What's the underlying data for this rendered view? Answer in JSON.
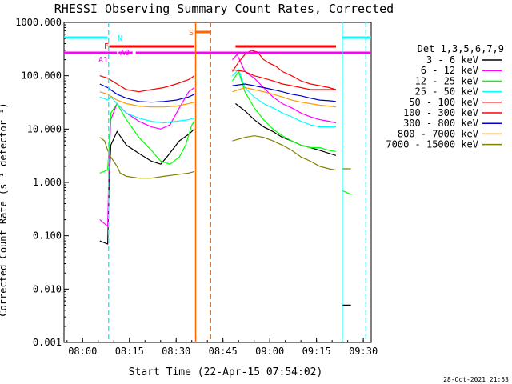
{
  "chart_data": {
    "type": "line",
    "title": "RHESSI Observing Summary Count Rates, Corrected",
    "xlabel": "Start Time (22-Apr-15 07:54:02)",
    "ylabel": "Corrected Count Rate (s⁻¹ detector⁻¹)",
    "yscale": "log",
    "ylim": [
      0.001,
      1000
    ],
    "xlim_minutes": [
      0,
      98.5
    ],
    "x_unit": "minutes after 07:54:02",
    "yticks": [
      "1000.000",
      "100.000",
      "10.000",
      "1.000",
      "0.100",
      "0.010",
      "0.001"
    ],
    "xticks": [
      {
        "label": "08:00",
        "m": 5.97
      },
      {
        "label": "08:15",
        "m": 20.97
      },
      {
        "label": "08:30",
        "m": 35.97
      },
      {
        "label": "08:45",
        "m": 50.97
      },
      {
        "label": "09:00",
        "m": 65.97
      },
      {
        "label": "09:15",
        "m": 80.97
      },
      {
        "label": "09:30",
        "m": 95.97
      }
    ],
    "legend_title": "Det 1,3,5,6,7,9",
    "legend_position": "right",
    "footer": "28-Oct-2021 21:53",
    "gaps_minutes": [
      [
        42,
        53.5
      ],
      [
        87.5,
        89.2
      ]
    ],
    "series": [
      {
        "name": "3 - 6 keV",
        "color": "#000000",
        "points": [
          [
            11.5,
            0.08
          ],
          [
            14,
            0.07
          ],
          [
            14.5,
            1.0
          ],
          [
            15,
            5.0
          ],
          [
            17,
            9.0
          ],
          [
            20,
            5.0
          ],
          [
            24,
            3.5
          ],
          [
            28,
            2.5
          ],
          [
            31,
            2.2
          ],
          [
            33,
            3.0
          ],
          [
            37,
            6.0
          ],
          [
            40,
            8.0
          ],
          [
            41.8,
            10
          ],
          [
            55,
            30
          ],
          [
            58,
            22
          ],
          [
            61,
            15
          ],
          [
            64,
            11
          ],
          [
            67,
            9
          ],
          [
            70,
            7
          ],
          [
            73,
            6
          ],
          [
            76,
            5.0
          ],
          [
            79,
            4.5
          ],
          [
            82,
            4.0
          ],
          [
            85,
            3.5
          ],
          [
            87.2,
            3.2
          ],
          [
            89.2,
            0.005
          ],
          [
            92,
            0.005
          ]
        ]
      },
      {
        "name": "6 - 12 keV",
        "color": "#ff00ff",
        "points": [
          [
            11.5,
            0.2
          ],
          [
            14,
            0.15
          ],
          [
            14.5,
            3.0
          ],
          [
            15,
            15
          ],
          [
            17,
            30
          ],
          [
            20,
            20
          ],
          [
            24,
            14
          ],
          [
            28,
            11
          ],
          [
            31,
            10
          ],
          [
            34,
            12
          ],
          [
            37,
            25
          ],
          [
            40,
            50
          ],
          [
            41.8,
            60
          ],
          [
            54,
            200
          ],
          [
            55.5,
            250
          ],
          [
            58,
            120
          ],
          [
            61,
            90
          ],
          [
            64,
            60
          ],
          [
            67,
            40
          ],
          [
            70,
            30
          ],
          [
            73,
            25
          ],
          [
            76,
            20
          ],
          [
            79,
            17
          ],
          [
            82,
            15
          ],
          [
            85,
            14
          ],
          [
            87.2,
            13
          ]
        ]
      },
      {
        "name": "12 - 25 keV",
        "color": "#00ff00",
        "points": [
          [
            11.5,
            1.5
          ],
          [
            14,
            1.7
          ],
          [
            14.5,
            5.0
          ],
          [
            15,
            20
          ],
          [
            17,
            30
          ],
          [
            20,
            15
          ],
          [
            24,
            7
          ],
          [
            28,
            4
          ],
          [
            31,
            2.5
          ],
          [
            34,
            2.2
          ],
          [
            37,
            3
          ],
          [
            39,
            5
          ],
          [
            41,
            12
          ],
          [
            41.8,
            14
          ],
          [
            54,
            80
          ],
          [
            56,
            120
          ],
          [
            58,
            50
          ],
          [
            61,
            25
          ],
          [
            64,
            15
          ],
          [
            67,
            10
          ],
          [
            70,
            7.5
          ],
          [
            73,
            6
          ],
          [
            76,
            5
          ],
          [
            79,
            4.5
          ],
          [
            82,
            4.5
          ],
          [
            85,
            4
          ],
          [
            87.2,
            3.8
          ],
          [
            89.2,
            0.7
          ],
          [
            92,
            0.6
          ]
        ]
      },
      {
        "name": "25 - 50 keV",
        "color": "#00ffff",
        "points": [
          [
            11.5,
            40
          ],
          [
            14,
            35
          ],
          [
            15,
            40
          ],
          [
            17,
            30
          ],
          [
            20,
            20
          ],
          [
            24,
            16
          ],
          [
            28,
            14
          ],
          [
            32,
            13
          ],
          [
            36,
            14
          ],
          [
            40,
            15
          ],
          [
            41.8,
            16
          ],
          [
            54,
            100
          ],
          [
            56,
            130
          ],
          [
            58,
            60
          ],
          [
            61,
            40
          ],
          [
            64,
            30
          ],
          [
            67,
            25
          ],
          [
            70,
            20
          ],
          [
            73,
            17
          ],
          [
            76,
            14
          ],
          [
            79,
            12
          ],
          [
            82,
            11
          ],
          [
            85,
            11
          ],
          [
            87.2,
            11
          ]
        ]
      },
      {
        "name": "50 - 100 keV",
        "color": "#ff0000",
        "points": [
          [
            11.5,
            100
          ],
          [
            14,
            90
          ],
          [
            17,
            70
          ],
          [
            20,
            55
          ],
          [
            24,
            50
          ],
          [
            28,
            55
          ],
          [
            32,
            60
          ],
          [
            36,
            70
          ],
          [
            40,
            85
          ],
          [
            41.8,
            100
          ],
          [
            54,
            130
          ],
          [
            58,
            120
          ],
          [
            61,
            100
          ],
          [
            64,
            90
          ],
          [
            67,
            80
          ],
          [
            70,
            70
          ],
          [
            73,
            65
          ],
          [
            76,
            60
          ],
          [
            79,
            55
          ],
          [
            82,
            55
          ],
          [
            85,
            55
          ],
          [
            87.2,
            55
          ]
        ]
      },
      {
        "name": "100 - 300 keV",
        "color": "#ff0000",
        "points": [
          [
            54,
            120
          ],
          [
            56,
            180
          ],
          [
            58,
            250
          ],
          [
            60,
            300
          ],
          [
            62,
            280
          ],
          [
            64,
            200
          ],
          [
            66,
            170
          ],
          [
            68,
            150
          ],
          [
            70,
            120
          ],
          [
            73,
            100
          ],
          [
            76,
            80
          ],
          [
            79,
            70
          ],
          [
            82,
            65
          ],
          [
            85,
            60
          ],
          [
            87.2,
            55
          ]
        ]
      },
      {
        "name": "300 - 800 keV",
        "color": "#0000cc",
        "points": [
          [
            11.5,
            70
          ],
          [
            14,
            60
          ],
          [
            17,
            45
          ],
          [
            20,
            38
          ],
          [
            24,
            33
          ],
          [
            28,
            32
          ],
          [
            32,
            33
          ],
          [
            36,
            35
          ],
          [
            40,
            40
          ],
          [
            41.8,
            45
          ],
          [
            54,
            65
          ],
          [
            58,
            70
          ],
          [
            61,
            65
          ],
          [
            64,
            60
          ],
          [
            67,
            55
          ],
          [
            70,
            50
          ],
          [
            73,
            45
          ],
          [
            76,
            42
          ],
          [
            79,
            38
          ],
          [
            82,
            35
          ],
          [
            85,
            34
          ],
          [
            87.2,
            33
          ]
        ]
      },
      {
        "name": "800 - 7000 keV",
        "color": "#ff9900",
        "points": [
          [
            11.5,
            50
          ],
          [
            14,
            45
          ],
          [
            17,
            35
          ],
          [
            20,
            30
          ],
          [
            24,
            27
          ],
          [
            28,
            26
          ],
          [
            32,
            26
          ],
          [
            36,
            27
          ],
          [
            40,
            30
          ],
          [
            41.8,
            32
          ],
          [
            54,
            50
          ],
          [
            58,
            60
          ],
          [
            61,
            55
          ],
          [
            64,
            50
          ],
          [
            67,
            45
          ],
          [
            70,
            40
          ],
          [
            73,
            35
          ],
          [
            76,
            32
          ],
          [
            79,
            30
          ],
          [
            82,
            28
          ],
          [
            85,
            27
          ],
          [
            87.2,
            26
          ]
        ]
      },
      {
        "name": "7000 - 15000 keV",
        "color": "#808000",
        "points": [
          [
            11.5,
            7
          ],
          [
            13,
            6
          ],
          [
            14,
            4
          ],
          [
            15,
            3
          ],
          [
            17,
            2
          ],
          [
            18,
            1.5
          ],
          [
            20,
            1.3
          ],
          [
            24,
            1.2
          ],
          [
            28,
            1.2
          ],
          [
            32,
            1.3
          ],
          [
            36,
            1.4
          ],
          [
            40,
            1.5
          ],
          [
            41.8,
            1.6
          ],
          [
            54,
            6
          ],
          [
            58,
            7
          ],
          [
            61,
            7.5
          ],
          [
            64,
            7
          ],
          [
            67,
            6
          ],
          [
            70,
            5
          ],
          [
            73,
            4
          ],
          [
            76,
            3
          ],
          [
            79,
            2.5
          ],
          [
            82,
            2
          ],
          [
            85,
            1.8
          ],
          [
            87.2,
            1.7
          ],
          [
            89.2,
            1.8
          ],
          [
            92,
            1.8
          ]
        ]
      }
    ],
    "flag_bars": [
      {
        "label": "N",
        "color": "#00ffff",
        "segments": [
          [
            0,
            14
          ],
          [
            89.2,
            98.5
          ]
        ]
      },
      {
        "label": "S",
        "color": "#ff6600",
        "segments": [
          [
            42,
            47
          ]
        ]
      },
      {
        "label": "F",
        "color": "#ff0000",
        "segments": [
          [
            14.5,
            41.8
          ],
          [
            55,
            87.2
          ]
        ]
      },
      {
        "label": "A0",
        "color": "#ff00ff",
        "segments": [
          [
            14.5,
            16.5
          ],
          [
            19,
            20.5
          ],
          [
            23,
            41.8
          ],
          [
            54,
            59
          ],
          [
            61,
            64
          ],
          [
            66.5,
            67.5
          ],
          [
            70.5,
            71.5
          ],
          [
            74,
            87.2
          ]
        ]
      },
      {
        "label": "A1",
        "color": "#ff00ff",
        "segments": [
          [
            0,
            14
          ],
          [
            14,
            17
          ],
          [
            17.5,
            22
          ],
          [
            31.5,
            98.5
          ]
        ]
      }
    ],
    "vlines": [
      {
        "m": 14.3,
        "color": "#00ffff",
        "style": "dashed"
      },
      {
        "m": 42.2,
        "color": "#ff6600",
        "style": "solid"
      },
      {
        "m": 47.0,
        "color": "#ff6600",
        "style": "dashed"
      },
      {
        "m": 89.2,
        "color": "#00ffff",
        "style": "solid"
      },
      {
        "m": 96.8,
        "color": "#00ffff",
        "style": "dashed"
      }
    ]
  }
}
